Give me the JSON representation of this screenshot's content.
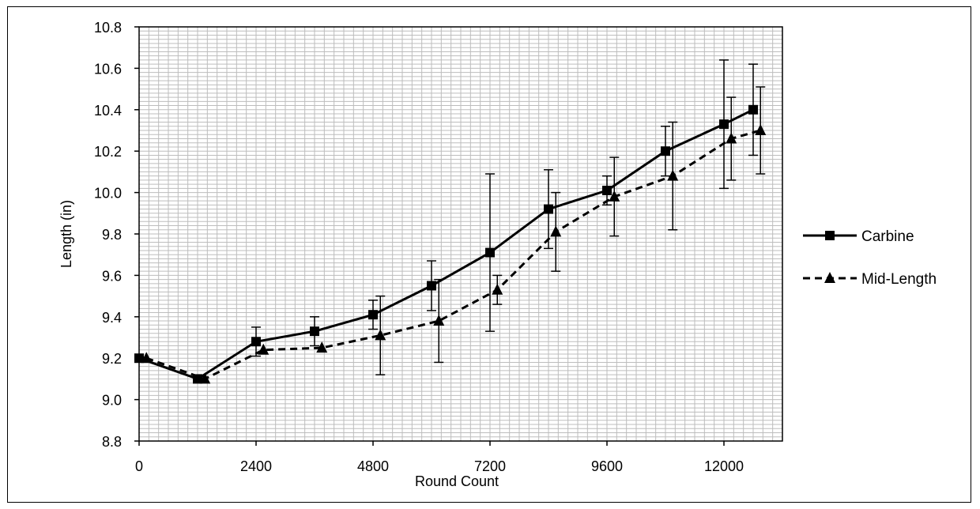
{
  "chart_data": {
    "type": "line",
    "xlabel": "Round Count",
    "ylabel": "Length (in)",
    "xlim": [
      0,
      13200
    ],
    "ylim": [
      8.8,
      10.8
    ],
    "x_ticks": [
      "0",
      "2400",
      "4800",
      "7200",
      "9600",
      "12000"
    ],
    "y_ticks": [
      "8.8",
      "9.0",
      "9.2",
      "9.4",
      "9.6",
      "9.8",
      "10.0",
      "10.2",
      "10.4",
      "10.6",
      "10.8"
    ],
    "grid": true,
    "legend_position": "right",
    "error_bars": true,
    "series": [
      {
        "name": "Carbine",
        "marker": "square",
        "line_style": "solid",
        "color": "#000000",
        "x": [
          0,
          1200,
          2400,
          3600,
          4800,
          6000,
          7200,
          8400,
          9600,
          10800,
          12000,
          12600
        ],
        "y": [
          9.2,
          9.1,
          9.28,
          9.33,
          9.41,
          9.55,
          9.71,
          9.92,
          10.01,
          10.2,
          10.33,
          10.4
        ],
        "err": [
          0.0,
          0.0,
          0.07,
          0.07,
          0.07,
          0.12,
          0.38,
          0.19,
          0.07,
          0.12,
          0.31,
          0.22
        ]
      },
      {
        "name": "Mid-Length",
        "marker": "triangle",
        "line_style": "dashed",
        "color": "#000000",
        "x": [
          150,
          1350,
          2550,
          3750,
          4950,
          6150,
          7350,
          8550,
          9750,
          10950,
          12150,
          12750
        ],
        "y": [
          9.2,
          9.1,
          9.24,
          9.25,
          9.31,
          9.38,
          9.53,
          9.81,
          9.98,
          10.08,
          10.26,
          10.3
        ],
        "err": [
          0.0,
          0.0,
          0.0,
          0.0,
          0.19,
          0.2,
          0.07,
          0.19,
          0.19,
          0.26,
          0.2,
          0.21
        ]
      }
    ]
  }
}
